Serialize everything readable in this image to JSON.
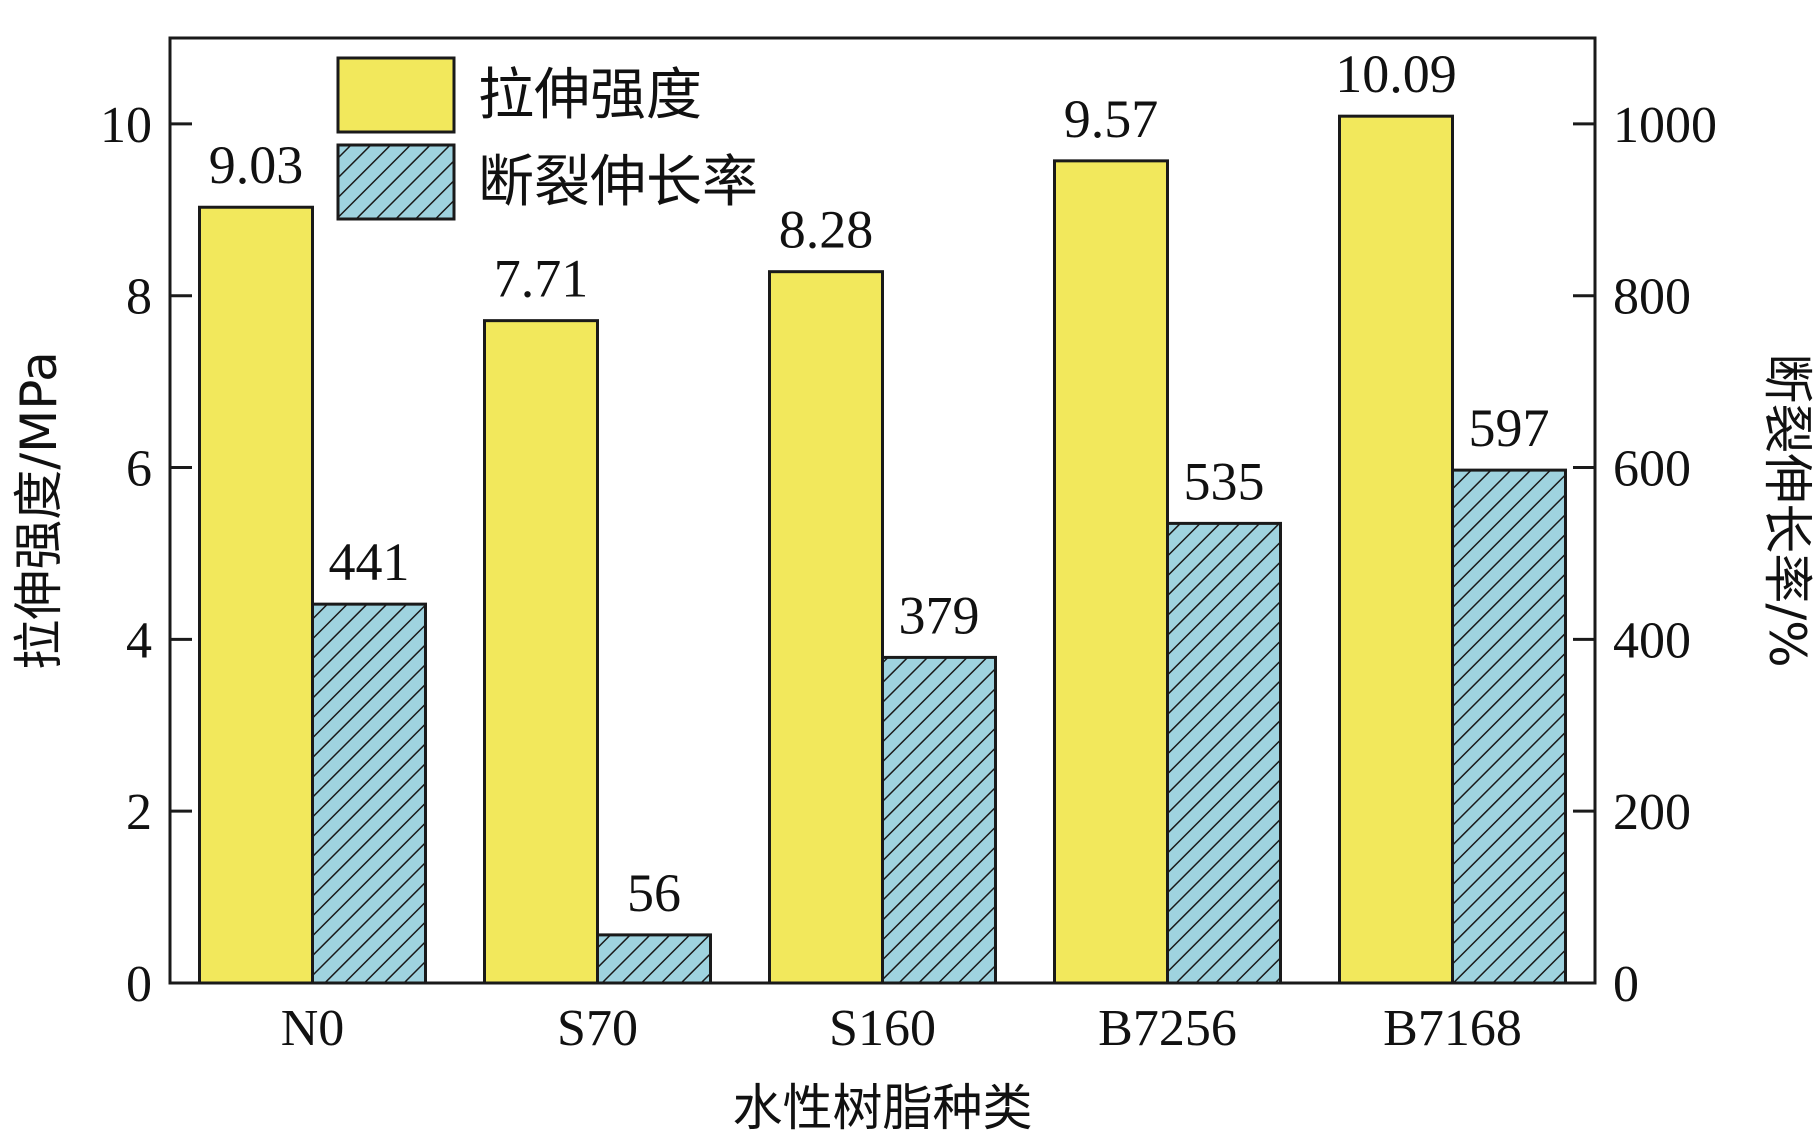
{
  "chart_data": {
    "type": "bar",
    "categories": [
      "N0",
      "S70",
      "S160",
      "B7256",
      "B7168"
    ],
    "series": [
      {
        "name": "拉伸强度",
        "axis": "left",
        "values": [
          9.03,
          7.71,
          8.28,
          9.57,
          10.09
        ],
        "labels": [
          "9.03",
          "7.71",
          "8.28",
          "9.57",
          "10.09"
        ],
        "color": "#f2e85c",
        "pattern": "solid"
      },
      {
        "name": "断裂伸长率",
        "axis": "right",
        "values": [
          441,
          56,
          379,
          535,
          597
        ],
        "labels": [
          "441",
          "56",
          "379",
          "535",
          "597"
        ],
        "color": "#9fd3df",
        "pattern": "hatch"
      }
    ],
    "xlabel": "水性树脂种类",
    "ylabel_left": "拉伸强度/MPa",
    "ylabel_right": "断裂伸长率/%",
    "ylim_left": [
      0,
      11
    ],
    "ylim_right": [
      0,
      1100
    ],
    "yticks_left": [
      "0",
      "2",
      "4",
      "6",
      "8",
      "10"
    ],
    "yticks_right": [
      "0",
      "200",
      "400",
      "600",
      "800",
      "1000"
    ],
    "legend_position": "top-left",
    "grid": false
  }
}
